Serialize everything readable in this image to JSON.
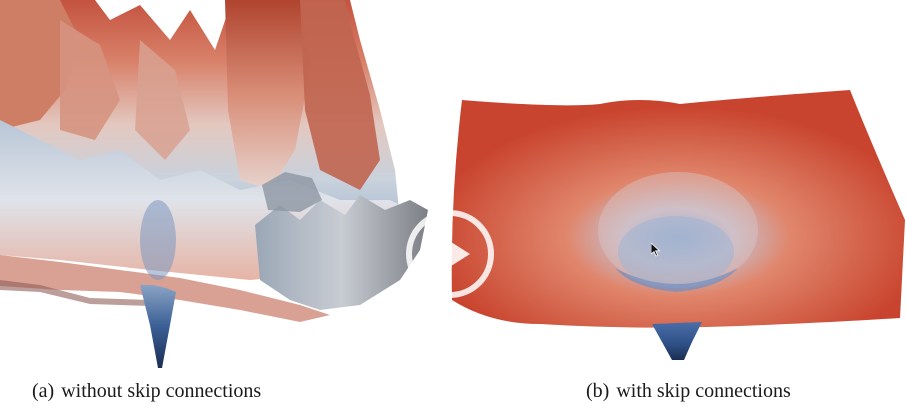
{
  "video": {
    "panels": [
      {
        "name": "without-skip",
        "caption_tag": "(a)",
        "caption_text": "without skip connections"
      },
      {
        "name": "with-skip",
        "caption_tag": "(b)",
        "caption_text": "with skip connections"
      }
    ],
    "player": {
      "play_icon": "play-icon",
      "cursor_icon": "mouse-cursor-icon"
    }
  },
  "colors": {
    "surface_red": "#c9442e",
    "surface_salmon": "#e0866c",
    "surface_white": "#dfe3ea",
    "surface_blue": "#2d4f86",
    "surface_navy": "#1b2d52",
    "play_overlay": "#ffffff"
  }
}
